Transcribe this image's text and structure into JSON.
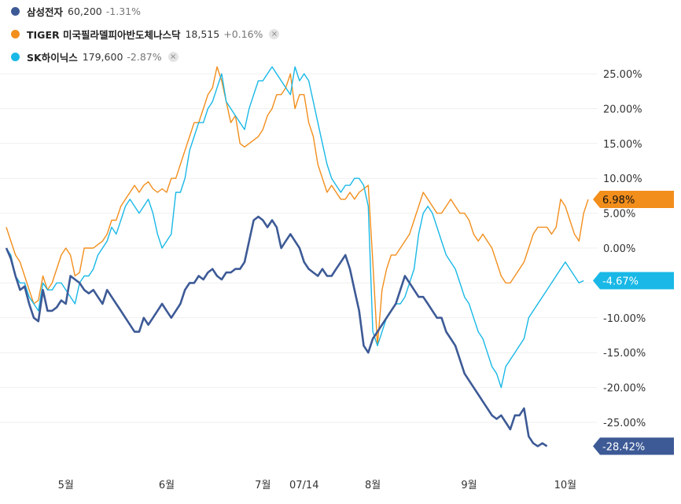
{
  "legend": {
    "items": [
      {
        "name": "삼성전자",
        "price": "60,200",
        "change": "-1.31%",
        "color": "#3d5a96",
        "removable": false
      },
      {
        "name": "TIGER 미국필라델피아반도체나스닥",
        "price": "18,515",
        "change": "+0.16%",
        "color": "#f28e1c",
        "removable": true
      },
      {
        "name": "SK하이닉스",
        "price": "179,600",
        "change": "-2.87%",
        "color": "#19b8e6",
        "removable": true
      }
    ],
    "close_glyph": "×"
  },
  "chart_data": {
    "type": "line",
    "title": "",
    "xlabel": "",
    "ylabel": "",
    "ylim": [
      -31,
      28
    ],
    "x_ticks": [
      "5월",
      "6월",
      "7월",
      "07/14",
      "8월",
      "9월",
      "10월"
    ],
    "x_tick_index": [
      13,
      35,
      56,
      65,
      80,
      101,
      122
    ],
    "y_ticks": [
      "25.00%",
      "20.00%",
      "15.00%",
      "10.00%",
      "5.00%",
      "0.00%",
      "-5.00%",
      "-10.00%",
      "-15.00%",
      "-20.00%",
      "-25.00%"
    ],
    "y_tick_values": [
      25,
      20,
      15,
      10,
      5,
      0,
      -5,
      -10,
      -15,
      -20,
      -25
    ],
    "series": [
      {
        "name": "TIGER 미국필라델피아반도체나스닥",
        "color": "#f28e1c",
        "end_label": "6.98%",
        "values": [
          3,
          1,
          -1,
          -2,
          -4,
          -6,
          -8,
          -7.5,
          -4,
          -6,
          -5,
          -3,
          -1,
          0,
          -1,
          -4,
          -3.5,
          0,
          0,
          0,
          0.5,
          1,
          2,
          4,
          4,
          6,
          7,
          8,
          9,
          8,
          9,
          9.5,
          8.5,
          8,
          8.5,
          8,
          10,
          10,
          12,
          14,
          16,
          18,
          18,
          20,
          22,
          23,
          26,
          24,
          21,
          18,
          19,
          15,
          14.5,
          15,
          15.5,
          16,
          17,
          19,
          20,
          22,
          22,
          23,
          25,
          20,
          22,
          22,
          18,
          16,
          12,
          10,
          8,
          9,
          8,
          7,
          7,
          8,
          7,
          8,
          8.5,
          9,
          -2,
          -14,
          -6,
          -3,
          -1,
          -1,
          0,
          1,
          2,
          4,
          6,
          8,
          7,
          6,
          5,
          5,
          6,
          7,
          6,
          5,
          5,
          4,
          2,
          1,
          2,
          1,
          0,
          -2,
          -4,
          -5,
          -5,
          -4,
          -3,
          -2,
          0,
          2,
          3,
          3,
          3,
          2,
          3,
          7,
          6,
          4,
          2,
          1,
          5,
          6.98
        ]
      },
      {
        "name": "SK하이닉스",
        "color": "#19b8e6",
        "end_label": "-4.67%",
        "values": [
          0,
          -1,
          -4,
          -5,
          -5,
          -7,
          -8,
          -9,
          -5,
          -6,
          -6,
          -5,
          -5,
          -6,
          -7,
          -8,
          -5,
          -4,
          -4,
          -3,
          -1,
          0,
          1,
          3,
          2,
          4,
          6,
          7,
          6,
          5,
          6,
          7,
          5,
          2,
          0,
          1,
          2,
          8,
          8,
          10,
          14,
          16,
          18,
          18,
          20,
          21,
          23,
          25,
          21,
          20,
          19,
          18,
          17,
          20,
          22,
          24,
          24,
          25,
          26,
          25,
          24,
          23,
          22,
          26,
          24,
          25,
          24,
          21,
          18,
          15,
          12,
          10,
          9,
          8,
          9,
          9,
          10,
          10,
          9,
          6,
          -12,
          -14,
          -12,
          -10,
          -9,
          -8,
          -8,
          -7,
          -5,
          -3,
          2,
          5,
          6,
          5,
          3,
          1,
          -1,
          -2,
          -3,
          -5,
          -7,
          -8,
          -10,
          -12,
          -13,
          -15,
          -17,
          -18,
          -20,
          -17,
          -16,
          -15,
          -14,
          -13,
          -10,
          -9,
          -8,
          -7,
          -6,
          -5,
          -4,
          -3,
          -2,
          -3,
          -4,
          -5,
          -4.67
        ]
      },
      {
        "name": "삼성전자",
        "color": "#3d5a96",
        "end_label": "-28.42%",
        "values": [
          0,
          -1.5,
          -4,
          -6,
          -5.5,
          -8,
          -10,
          -10.5,
          -6,
          -9,
          -9,
          -8.5,
          -7.5,
          -8,
          -4,
          -4.5,
          -5,
          -6,
          -6.5,
          -6,
          -7,
          -8,
          -6,
          -7,
          -8,
          -9,
          -10,
          -11,
          -12,
          -12,
          -10,
          -11,
          -10,
          -9,
          -8,
          -9,
          -10,
          -9,
          -8,
          -6,
          -5,
          -5,
          -4,
          -4.5,
          -3.5,
          -3,
          -4,
          -4.5,
          -3.5,
          -3.5,
          -3,
          -3,
          -2,
          1,
          4,
          4.5,
          4,
          3,
          4,
          3,
          0,
          1,
          2,
          1,
          0,
          -2,
          -3,
          -3.5,
          -4,
          -3,
          -4,
          -4,
          -3,
          -2,
          -1,
          -3,
          -6,
          -9,
          -14,
          -15,
          -13,
          -12,
          -11,
          -10,
          -9,
          -8,
          -6,
          -4,
          -5,
          -6,
          -7,
          -7,
          -8,
          -9,
          -10,
          -10,
          -12,
          -13,
          -14,
          -16,
          -18,
          -19,
          -20,
          -21,
          -22,
          -23,
          -24,
          -24.5,
          -24,
          -25,
          -26,
          -24,
          -24,
          -23,
          -27,
          -28,
          -28.42,
          -28,
          -28.42
        ]
      }
    ]
  }
}
